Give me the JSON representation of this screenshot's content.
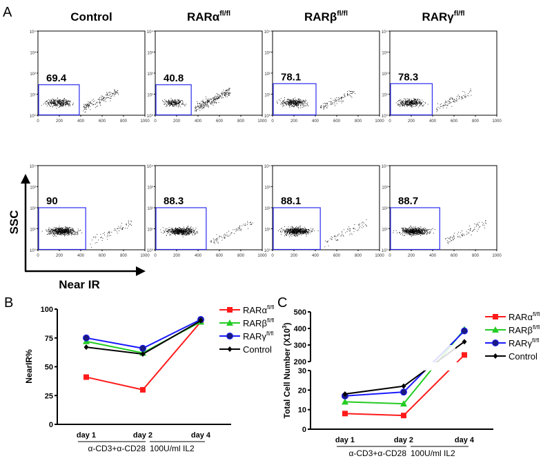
{
  "panel_labels": {
    "a": "A",
    "b": "B",
    "c": "C"
  },
  "chart_data": [
    {
      "type": "scatter",
      "panel": "A",
      "xlabel": "Near IR",
      "ylabel": "SSC",
      "xticks": [
        "0",
        "200",
        "400",
        "600",
        "800",
        "1000"
      ],
      "yticks": [
        "10⁰",
        "10¹",
        "10²",
        "10³",
        "10⁴"
      ],
      "xlim": [
        0,
        1000
      ],
      "ylim_log10": [
        0,
        4
      ],
      "columns": [
        "Control",
        "RARα",
        "RARβ",
        "RARγ"
      ],
      "column_sup": [
        "",
        "fl/fl",
        "fl/fl",
        "fl/fl"
      ],
      "rows": [
        {
          "gates": [
            {
              "pct": "69.4",
              "xmax": 380,
              "ymax_log10": 1.45
            },
            {
              "pct": "40.8",
              "xmax": 330,
              "ymax_log10": 1.45
            },
            {
              "pct": "78.1",
              "xmax": 400,
              "ymax_log10": 1.5
            },
            {
              "pct": "78.3",
              "xmax": 390,
              "ymax_log10": 1.5
            }
          ]
        },
        {
          "gates": [
            {
              "pct": "90",
              "xmax": 440,
              "ymax_log10": 2
            },
            {
              "pct": "88.3",
              "xmax": 470,
              "ymax_log10": 2
            },
            {
              "pct": "88.1",
              "xmax": 440,
              "ymax_log10": 2
            },
            {
              "pct": "88.7",
              "xmax": 460,
              "ymax_log10": 2
            }
          ]
        }
      ]
    },
    {
      "type": "line",
      "panel": "B",
      "ylabel": "NearIR%",
      "categories": [
        "day 1",
        "day 2",
        "day 4"
      ],
      "yticks": [
        "0",
        "25",
        "50",
        "75",
        "100"
      ],
      "ylim": [
        0,
        100
      ],
      "groups": [
        "α-CD3+α-CD28",
        "100U/ml IL2"
      ],
      "series": [
        {
          "name": "RARα",
          "sup": "fl/fl",
          "color": "#ff1a1a",
          "marker": "square",
          "values": [
            41,
            30,
            89
          ]
        },
        {
          "name": "RARβ",
          "sup": "fl/fl",
          "color": "#22cc22",
          "marker": "triangle",
          "values": [
            72,
            62,
            89
          ]
        },
        {
          "name": "RARγ",
          "sup": "fl/fl",
          "color": "#1a1aff",
          "marker": "circle",
          "values": [
            75,
            66,
            91
          ]
        },
        {
          "name": "Control",
          "sup": "",
          "color": "#000000",
          "marker": "diamond",
          "values": [
            67,
            61,
            90
          ]
        }
      ],
      "legend": "right"
    },
    {
      "type": "line",
      "panel": "C",
      "ylabel": "Total Cell Number (X10",
      "ylabel_sup": "3",
      "ylabel_end": ")",
      "categories": [
        "day 1",
        "day 2",
        "day 4"
      ],
      "yticks_low": [
        "0",
        "10",
        "20",
        "30"
      ],
      "yticks_high": [
        "200",
        "300",
        "400",
        "500"
      ],
      "ylim_low": [
        0,
        30
      ],
      "ylim_high": [
        200,
        500
      ],
      "groups": [
        "α-CD3+α-CD28",
        "100U/ml IL2"
      ],
      "series": [
        {
          "name": "RARα",
          "sup": "fl/fl",
          "color": "#ff1a1a",
          "marker": "square",
          "values": [
            8,
            7,
            240
          ]
        },
        {
          "name": "RARβ",
          "sup": "fl/fl",
          "color": "#22cc22",
          "marker": "triangle",
          "values": [
            14,
            13,
            395
          ]
        },
        {
          "name": "RARγ",
          "sup": "fl/fl",
          "color": "#1a1aff",
          "marker": "circle",
          "values": [
            17,
            19,
            385
          ]
        },
        {
          "name": "Control",
          "sup": "",
          "color": "#000000",
          "marker": "diamond",
          "values": [
            18,
            22,
            320
          ]
        }
      ],
      "legend": "right"
    }
  ]
}
